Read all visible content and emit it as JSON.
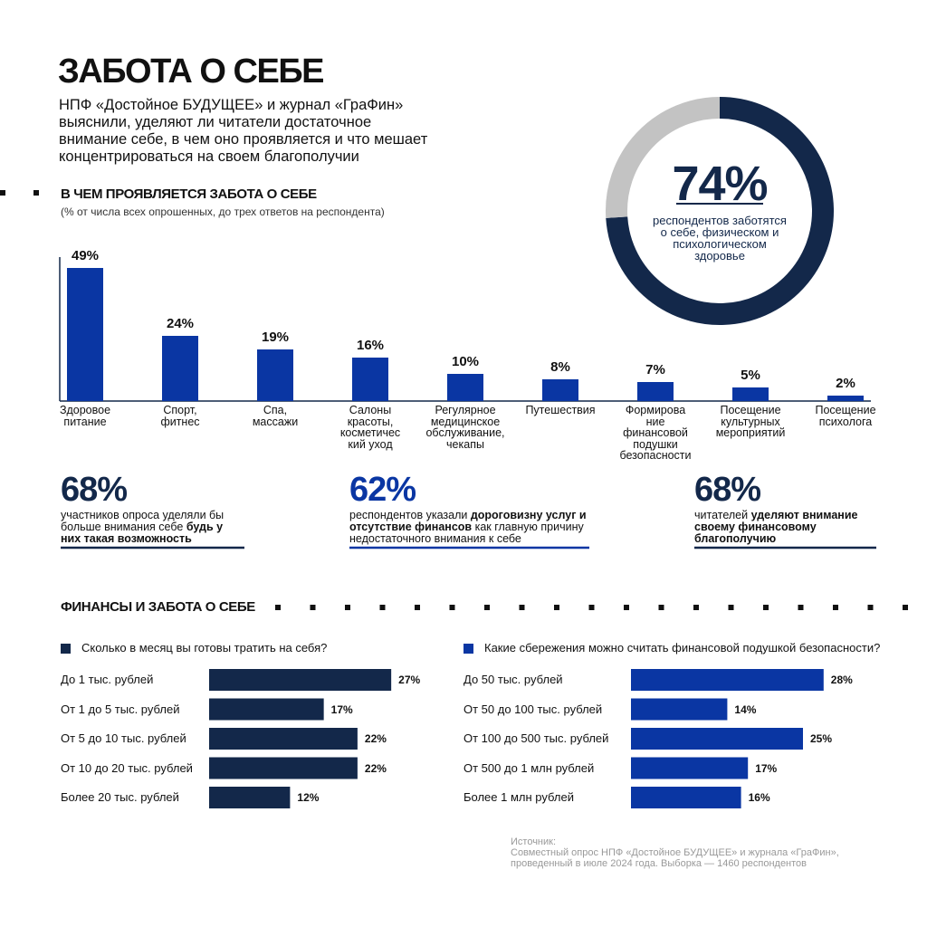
{
  "header": {
    "title": "ЗАБОТА О СЕБЕ",
    "intro": "НПФ «Достойное БУДУЩЕЕ» и журнал «ГраФин»\nвыяснили, уделяют ли читатели достаточное\nвнимание себе, в чем оно проявляется и что мешает\nконцентрироваться на своем благополучии"
  },
  "chart_data": [
    {
      "type": "pie",
      "donut": true,
      "values": [
        74,
        26
      ],
      "value_labels": [
        "74%",
        null
      ],
      "colors": [
        "#13284a",
        "#c3c3c3"
      ],
      "caption": "респондентов заботятся\nо себе, физическом и\nпсихологическом\nздоровье"
    },
    {
      "type": "bar",
      "title": "В ЧЕМ ПРОЯВЛЯЕТСЯ ЗАБОТА О СЕБЕ",
      "subtitle": "(% от числа всех опрошенных, до трех ответов на респондента)",
      "categories": [
        "Здоровое\nпитание",
        "Спорт,\nфитнес",
        "Спа,\nмассажи",
        "Салоны\nкрасоты,\nкосметичес\nкий уход",
        "Регулярное\nмедицинское\nобслуживание,\nчекапы",
        "Путешествия",
        "Формирова\nние\nфинансовой\nподушки\nбезопасности",
        "Посещение\nкультурных\nмероприятий",
        "Посещение\nпсихолога"
      ],
      "values": [
        49,
        24,
        19,
        16,
        10,
        8,
        7,
        5,
        2
      ],
      "value_labels": [
        "49%",
        "24%",
        "19%",
        "16%",
        "10%",
        "8%",
        "7%",
        "5%",
        "2%"
      ],
      "color": "#0a36a3"
    },
    {
      "type": "hbar",
      "title": "ФИНАНСЫ И ЗАБОТА О СЕБЕ",
      "series_name": "Сколько в месяц вы готовы тратить на себя?",
      "categories": [
        "До 1 тыс. рублей",
        "От 1 до 5 тыс. рублей",
        "От 5 до 10 тыс. рублей",
        "От 10 до 20 тыс. рублей",
        "Более 20 тыс. рублей"
      ],
      "values": [
        27,
        17,
        22,
        22,
        12
      ],
      "value_labels": [
        "27%",
        "17%",
        "22%",
        "22%",
        "12%"
      ],
      "color": "#13284a"
    },
    {
      "type": "hbar",
      "series_name": "Какие сбережения можно считать финансовой подушкой безопасности?",
      "categories": [
        "До 50 тыс. рублей",
        "От 50 до 100 тыс. рублей",
        "От 100 до 500 тыс. рублей",
        "От 500 до 1 млн рублей",
        "Более 1 млн рублей"
      ],
      "values": [
        28,
        14,
        25,
        17,
        16
      ],
      "value_labels": [
        "28%",
        "14%",
        "25%",
        "17%",
        "16%"
      ],
      "color": "#0a36a3"
    }
  ],
  "stats": [
    {
      "value": "68%",
      "color": "#13284a",
      "parts": [
        {
          "text": "участников опроса уделяли бы больше внимания себе "
        },
        {
          "text": "будь у них такая возможность",
          "bold": true
        }
      ]
    },
    {
      "value": "62%",
      "color": "#0a36a3",
      "parts": [
        {
          "text": "респондентов указали "
        },
        {
          "text": "дороговизну услуг и отсутствие финансов",
          "bold": true
        },
        {
          "text": " как главную причину недостаточного внимания к себе"
        }
      ]
    },
    {
      "value": "68%",
      "color": "#13284a",
      "parts": [
        {
          "text": "читателей "
        },
        {
          "text": "уделяют внимание своему финансовому благополучию",
          "bold": true
        }
      ]
    }
  ],
  "source_label": "Источник:",
  "source": "Совместный опрос НПФ «Достойное БУДУЩЕЕ» и журнала «ГраФин»,\nпроведенный в июле 2024 года. Выборка — 1460 респондентов"
}
